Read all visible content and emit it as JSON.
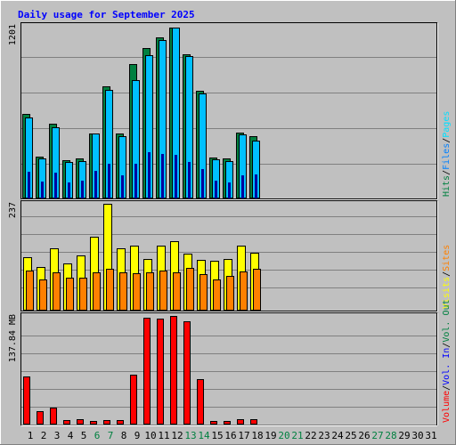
{
  "chart_data": {
    "title": "Daily usage for September 2025",
    "type": "bar",
    "categories": [
      "1",
      "2",
      "3",
      "4",
      "5",
      "6",
      "7",
      "8",
      "9",
      "10",
      "11",
      "12",
      "13",
      "14",
      "15",
      "16",
      "17",
      "18",
      "19",
      "20",
      "21",
      "22",
      "23",
      "24",
      "25",
      "26",
      "27",
      "28",
      "29",
      "30",
      "31"
    ],
    "weekend_days": [
      "6",
      "7",
      "13",
      "14",
      "20",
      "21",
      "27",
      "28"
    ],
    "colors": {
      "background": "#c0c0c0",
      "title": "#0000ff",
      "hits": "#008040",
      "files": "#00c0ff",
      "pages": "#00e0ff",
      "visits": "#ffff00",
      "sites": "#ff8000",
      "kbytes": "#ff0000",
      "weekend_label": "#008040",
      "weekday_label": "#000000"
    },
    "panels": [
      {
        "ymax_label": "1201",
        "ymax": 1201,
        "legend": [
          "Hits",
          "Files",
          "Pages"
        ],
        "series": [
          {
            "name": "Hits",
            "values": [
              590,
              289,
              519,
              267,
              278,
              454,
              778,
              453,
              935,
              1049,
              1123,
              1188,
              1000,
              747,
              283,
              276,
              460,
              431,
              0,
              0,
              0,
              0,
              0,
              0,
              0,
              0,
              0,
              0,
              0,
              0,
              0
            ]
          },
          {
            "name": "Files",
            "values": [
              562,
              276,
              496,
              253,
              262,
              452,
              757,
              431,
              823,
              999,
              1099,
              1188,
              989,
              731,
              272,
              259,
              448,
              403,
              0,
              0,
              0,
              0,
              0,
              0,
              0,
              0,
              0,
              0,
              0,
              0,
              0
            ]
          },
          {
            "name": "Pages",
            "values": [
              186,
              116,
              178,
              114,
              121,
              190,
              239,
              161,
              244,
              322,
              312,
              302,
              255,
              204,
              122,
              114,
              163,
              167,
              0,
              0,
              0,
              0,
              0,
              0,
              0,
              0,
              0,
              0,
              0,
              0,
              0
            ]
          }
        ]
      },
      {
        "ymax_label": "237",
        "ymax": 237,
        "legend": [
          "Visits",
          "Sites"
        ],
        "series": [
          {
            "name": "Visits",
            "values": [
              118,
              97,
              139,
              104,
              122,
              164,
              237,
              139,
              145,
              114,
              144,
              155,
              126,
              113,
              111,
              114,
              144,
              129,
              0,
              0,
              0,
              0,
              0,
              0,
              0,
              0,
              0,
              0,
              0,
              0,
              0
            ]
          },
          {
            "name": "Sites",
            "values": [
              88,
              69,
              85,
              73,
              74,
              85,
              93,
              85,
              82,
              84,
              88,
              84,
              94,
              81,
              70,
              78,
              86,
              92,
              0,
              0,
              0,
              0,
              0,
              0,
              0,
              0,
              0,
              0,
              0,
              0,
              0
            ]
          }
        ]
      },
      {
        "ymax_label": "137.84 MB",
        "ymax": 137.84,
        "legend": [
          "Volume",
          "Vol. In",
          "Vol. Out"
        ],
        "series": [
          {
            "name": "Volume",
            "values": [
              61,
              17,
              21,
              6,
              7,
              5,
              6,
              6,
              63,
              136,
              135,
              137.84,
              131,
              58,
              5,
              5,
              7,
              7,
              0,
              0,
              0,
              0,
              0,
              0,
              0,
              0,
              0,
              0,
              0,
              0,
              0
            ]
          }
        ]
      }
    ]
  }
}
